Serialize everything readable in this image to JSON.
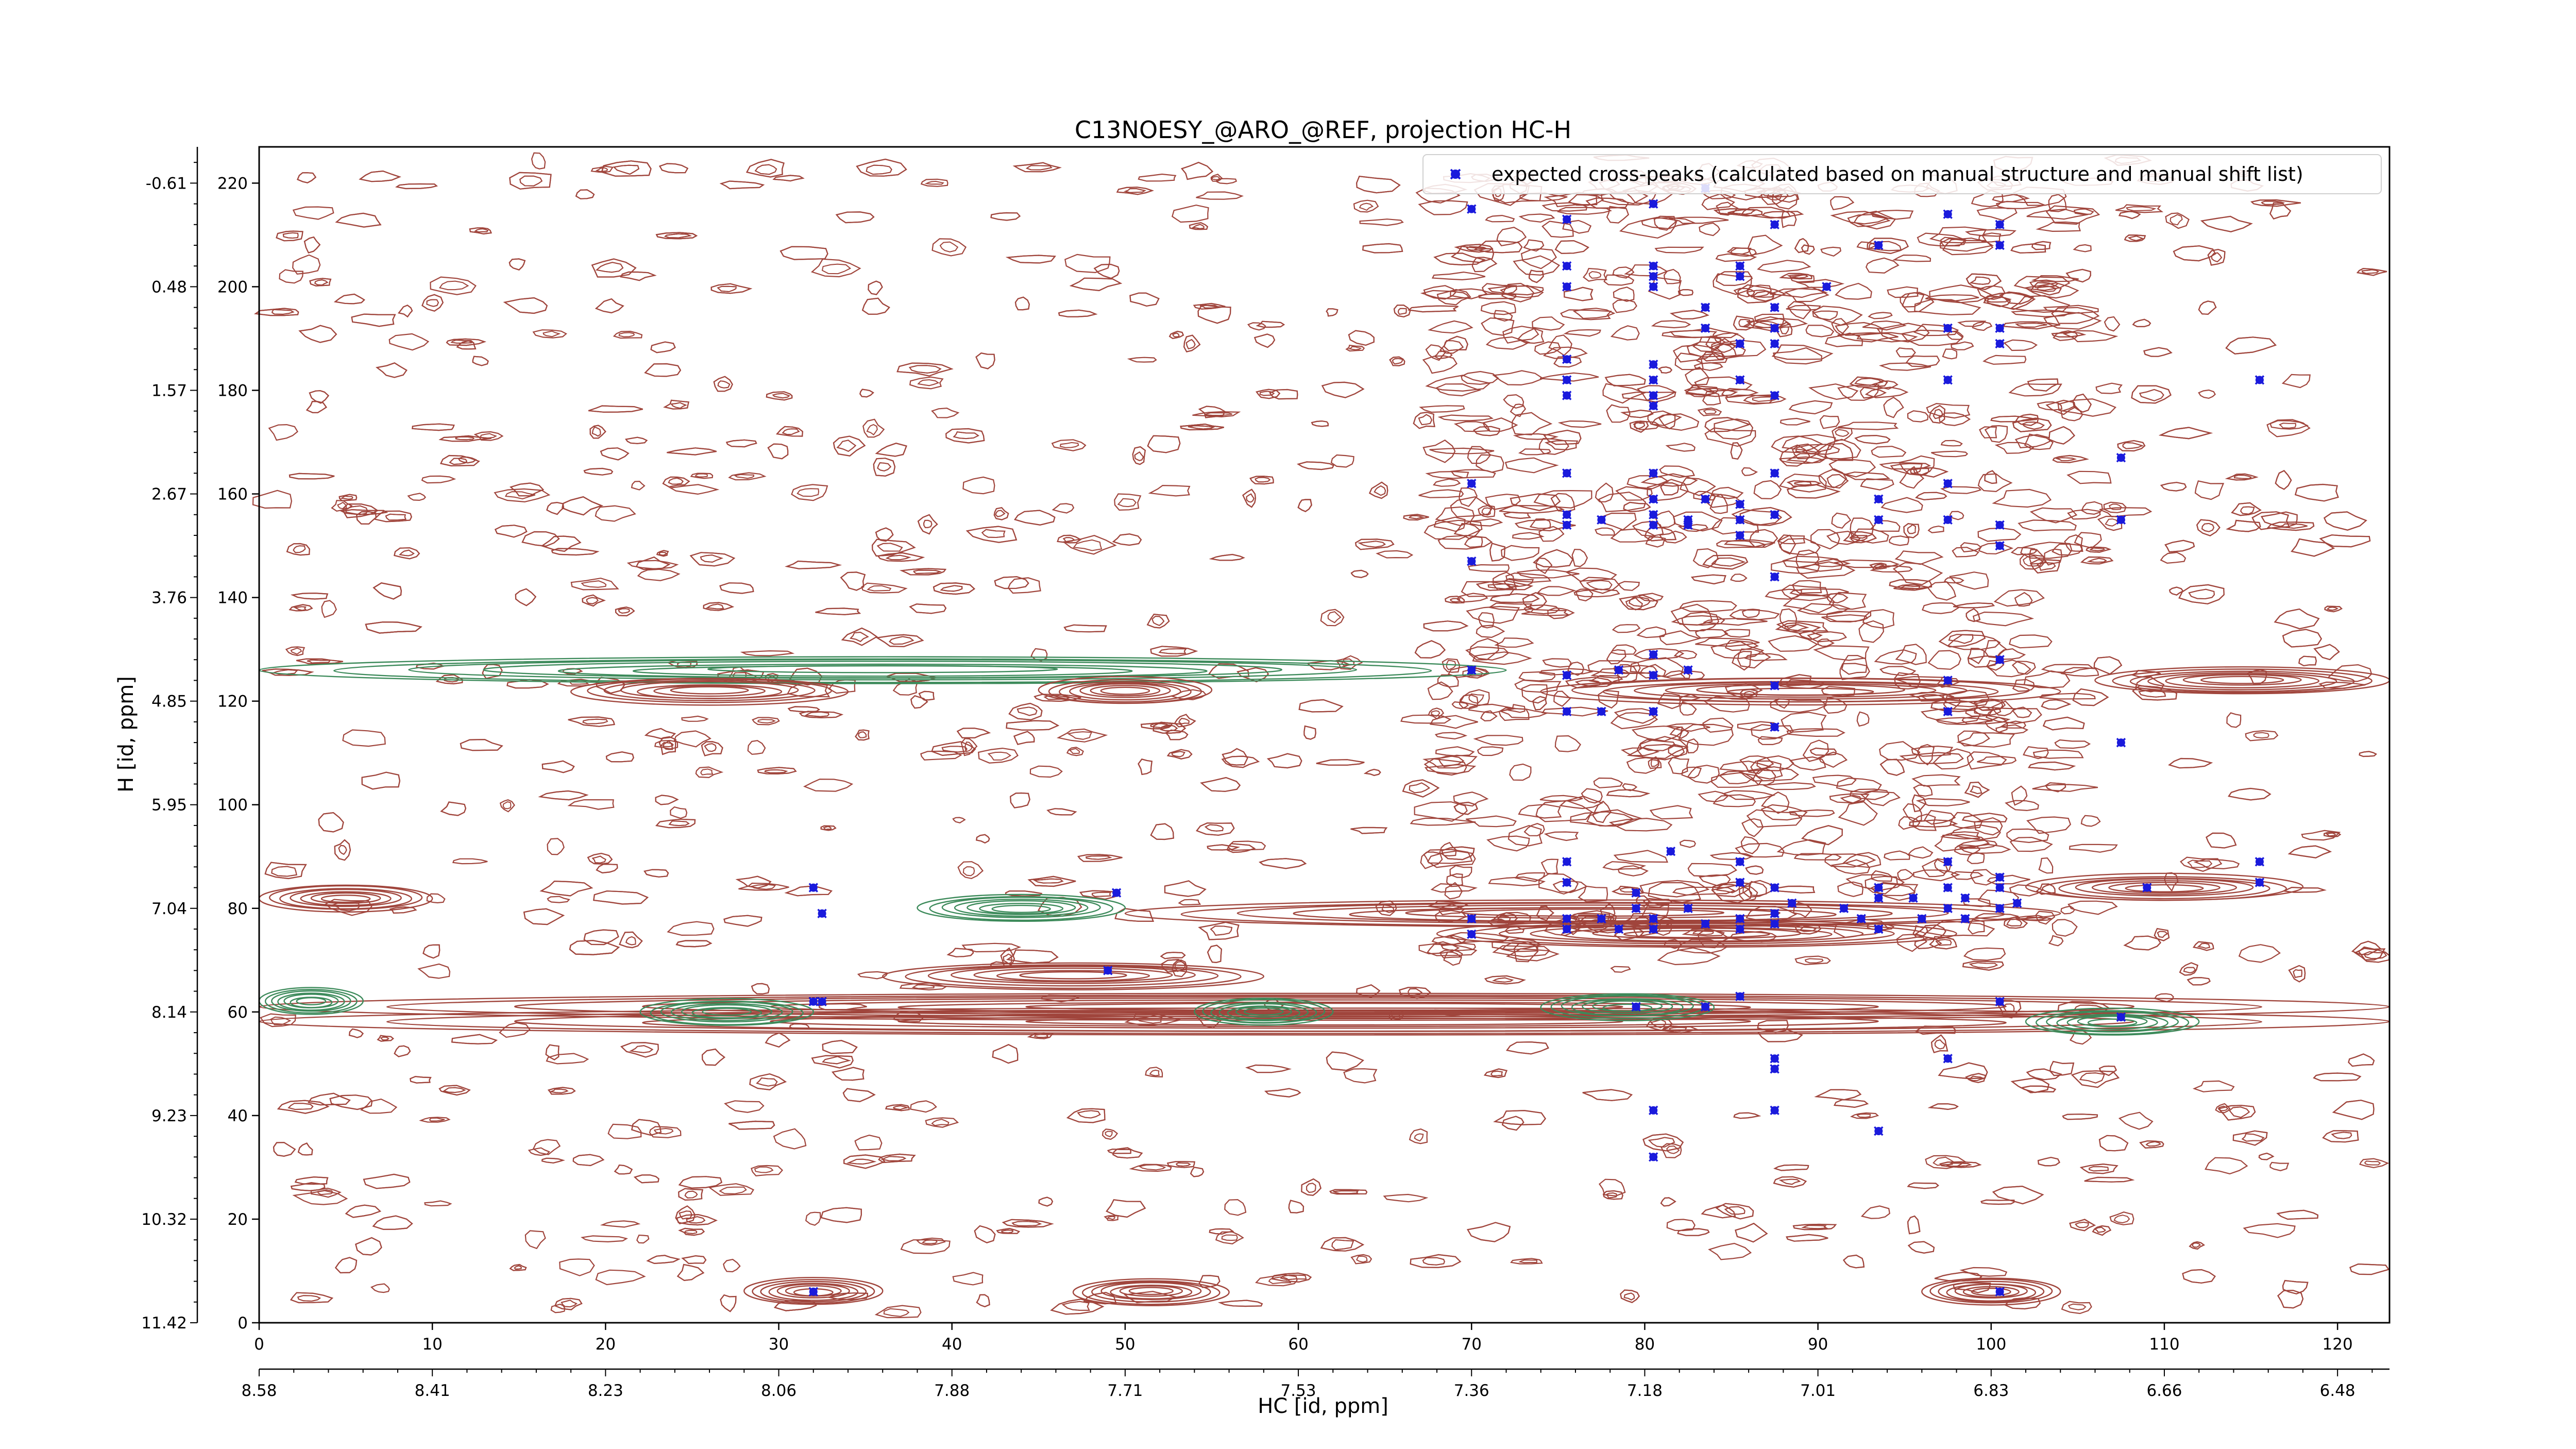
{
  "chart_data": {
    "type": "scatter",
    "title": "C13NOESY_@ARO_@REF, projection HC-H",
    "xlabel": "HC [id, ppm]",
    "ylabel": "H [id, ppm]",
    "xlim": [
      0,
      123
    ],
    "ylim": [
      0,
      227
    ],
    "x_ticks": [
      0,
      10,
      20,
      30,
      40,
      50,
      60,
      70,
      80,
      90,
      100,
      110,
      120
    ],
    "x_ticks_ppm": [
      {
        "x": 0,
        "label": "8.58"
      },
      {
        "x": 10,
        "label": "8.41"
      },
      {
        "x": 20,
        "label": "8.23"
      },
      {
        "x": 30,
        "label": "8.06"
      },
      {
        "x": 40,
        "label": "7.88"
      },
      {
        "x": 50,
        "label": "7.71"
      },
      {
        "x": 60,
        "label": "7.53"
      },
      {
        "x": 70,
        "label": "7.36"
      },
      {
        "x": 80,
        "label": "7.18"
      },
      {
        "x": 90,
        "label": "7.01"
      },
      {
        "x": 100,
        "label": "6.83"
      },
      {
        "x": 110,
        "label": "6.66"
      },
      {
        "x": 120,
        "label": "6.48"
      }
    ],
    "y_ticks": [
      0,
      20,
      40,
      60,
      80,
      100,
      120,
      140,
      160,
      180,
      200,
      220
    ],
    "y_ticks_ppm": [
      {
        "y": 0,
        "label": "11.42"
      },
      {
        "y": 20,
        "label": "10.32"
      },
      {
        "y": 40,
        "label": "9.23"
      },
      {
        "y": 60,
        "label": "8.14"
      },
      {
        "y": 80,
        "label": "7.04"
      },
      {
        "y": 100,
        "label": "5.95"
      },
      {
        "y": 120,
        "label": "4.85"
      },
      {
        "y": 140,
        "label": "3.76"
      },
      {
        "y": 160,
        "label": "2.67"
      },
      {
        "y": 180,
        "label": "1.57"
      },
      {
        "y": 200,
        "label": "0.48"
      },
      {
        "y": 220,
        "label": "-0.61"
      }
    ],
    "legend": {
      "placement": "top-right",
      "label": "expected cross-peaks (calculated based on manual structure and manual shift list)"
    },
    "grid": false,
    "contour_colors": {
      "positive": "#a0453c",
      "negative": "#3c8a5a"
    },
    "marker_color": "#1a1adc",
    "bands": [
      {
        "sign": "negative",
        "y": 126,
        "x0": 0,
        "x1": 72
      },
      {
        "sign": "positive",
        "y": 122,
        "x0": 18,
        "x1": 34
      },
      {
        "sign": "positive",
        "y": 122,
        "x0": 45,
        "x1": 55
      },
      {
        "sign": "positive",
        "y": 122,
        "x0": 74,
        "x1": 104
      },
      {
        "sign": "positive",
        "y": 124,
        "x0": 106,
        "x1": 123
      },
      {
        "sign": "positive",
        "y": 82,
        "x0": 0,
        "x1": 10
      },
      {
        "sign": "negative",
        "y": 80,
        "x0": 38,
        "x1": 50
      },
      {
        "sign": "positive",
        "y": 79,
        "x0": 50,
        "x1": 104
      },
      {
        "sign": "positive",
        "y": 75,
        "x0": 68,
        "x1": 98
      },
      {
        "sign": "positive",
        "y": 84,
        "x0": 102,
        "x1": 118
      },
      {
        "sign": "positive",
        "y": 67,
        "x0": 36,
        "x1": 58
      },
      {
        "sign": "positive",
        "y": 61,
        "x0": 0,
        "x1": 123
      },
      {
        "sign": "negative",
        "y": 62,
        "x0": 0,
        "x1": 6
      },
      {
        "sign": "positive",
        "y": 58,
        "x0": 0,
        "x1": 123
      },
      {
        "sign": "negative",
        "y": 60,
        "x0": 22,
        "x1": 32
      },
      {
        "sign": "negative",
        "y": 60,
        "x0": 54,
        "x1": 62
      },
      {
        "sign": "negative",
        "y": 61,
        "x0": 74,
        "x1": 84
      },
      {
        "sign": "negative",
        "y": 58,
        "x0": 102,
        "x1": 112
      },
      {
        "sign": "positive",
        "y": 6,
        "x0": 28,
        "x1": 36
      },
      {
        "sign": "positive",
        "y": 6,
        "x0": 47,
        "x1": 56
      },
      {
        "sign": "positive",
        "y": 6,
        "x0": 96,
        "x1": 104
      }
    ],
    "points": [
      [
        70,
        215
      ],
      [
        75.5,
        213
      ],
      [
        80.5,
        216
      ],
      [
        83.5,
        219
      ],
      [
        87.5,
        212
      ],
      [
        97.5,
        214
      ],
      [
        100.5,
        212
      ],
      [
        93.5,
        208
      ],
      [
        100.5,
        208
      ],
      [
        75.5,
        204
      ],
      [
        80.5,
        204
      ],
      [
        80.5,
        202
      ],
      [
        85.5,
        204
      ],
      [
        85.5,
        202
      ],
      [
        75.5,
        200
      ],
      [
        80.5,
        200
      ],
      [
        90.5,
        200
      ],
      [
        83.5,
        196
      ],
      [
        87.5,
        196
      ],
      [
        83.5,
        192
      ],
      [
        87.5,
        192
      ],
      [
        97.5,
        192
      ],
      [
        100.5,
        192
      ],
      [
        75.5,
        186
      ],
      [
        80.5,
        185
      ],
      [
        85.5,
        189
      ],
      [
        87.5,
        189
      ],
      [
        100.5,
        189
      ],
      [
        75.5,
        182
      ],
      [
        80.5,
        182
      ],
      [
        85.5,
        182
      ],
      [
        97.5,
        182
      ],
      [
        115.5,
        182
      ],
      [
        75.5,
        179
      ],
      [
        80.5,
        179
      ],
      [
        87.5,
        179
      ],
      [
        80.5,
        177
      ],
      [
        107.5,
        167
      ],
      [
        75.5,
        164
      ],
      [
        80.5,
        164
      ],
      [
        87.5,
        164
      ],
      [
        70,
        162
      ],
      [
        97.5,
        162
      ],
      [
        80.5,
        159
      ],
      [
        83.5,
        159
      ],
      [
        93.5,
        159
      ],
      [
        85.5,
        158
      ],
      [
        75.5,
        156
      ],
      [
        77.5,
        155
      ],
      [
        80.5,
        156
      ],
      [
        82.5,
        155
      ],
      [
        85.5,
        155
      ],
      [
        87.5,
        156
      ],
      [
        93.5,
        155
      ],
      [
        97.5,
        155
      ],
      [
        100.5,
        154
      ],
      [
        107.5,
        155
      ],
      [
        75.5,
        154
      ],
      [
        80.5,
        154
      ],
      [
        85.5,
        152
      ],
      [
        82.5,
        154
      ],
      [
        100.5,
        150
      ],
      [
        70,
        147
      ],
      [
        87.5,
        144
      ],
      [
        80.5,
        129
      ],
      [
        70,
        126
      ],
      [
        75.5,
        125
      ],
      [
        78.5,
        126
      ],
      [
        80.5,
        125
      ],
      [
        82.5,
        126
      ],
      [
        87.5,
        123
      ],
      [
        97.5,
        124
      ],
      [
        100.5,
        128
      ],
      [
        75.5,
        118
      ],
      [
        77.5,
        118
      ],
      [
        80.5,
        118
      ],
      [
        97.5,
        118
      ],
      [
        87.5,
        115
      ],
      [
        107.5,
        112
      ],
      [
        32,
        84
      ],
      [
        49.5,
        83
      ],
      [
        32.5,
        79
      ],
      [
        75.5,
        89
      ],
      [
        81.5,
        91
      ],
      [
        85.5,
        89
      ],
      [
        97.5,
        89
      ],
      [
        115.5,
        89
      ],
      [
        75.5,
        85
      ],
      [
        79.5,
        83
      ],
      [
        85.5,
        85
      ],
      [
        87.5,
        84
      ],
      [
        93.5,
        84
      ],
      [
        97.5,
        84
      ],
      [
        100.5,
        86
      ],
      [
        100.5,
        84
      ],
      [
        115.5,
        85
      ],
      [
        109,
        84
      ],
      [
        70,
        78
      ],
      [
        75.5,
        78
      ],
      [
        77.5,
        78
      ],
      [
        79.5,
        80
      ],
      [
        80.5,
        78
      ],
      [
        82.5,
        80
      ],
      [
        83.5,
        77
      ],
      [
        85.5,
        78
      ],
      [
        87.5,
        79
      ],
      [
        88.5,
        81
      ],
      [
        91.5,
        80
      ],
      [
        92.5,
        78
      ],
      [
        93.5,
        82
      ],
      [
        95.5,
        82
      ],
      [
        97.5,
        80
      ],
      [
        98.5,
        82
      ],
      [
        100.5,
        80
      ],
      [
        101.5,
        81
      ],
      [
        70,
        75
      ],
      [
        75.5,
        76
      ],
      [
        78.5,
        76
      ],
      [
        80.5,
        76
      ],
      [
        85.5,
        76
      ],
      [
        87.5,
        77
      ],
      [
        93.5,
        76
      ],
      [
        96,
        78
      ],
      [
        98.5,
        78
      ],
      [
        49,
        68
      ],
      [
        32,
        62
      ],
      [
        32.5,
        62
      ],
      [
        79.5,
        61
      ],
      [
        85.5,
        63
      ],
      [
        83.5,
        61
      ],
      [
        100.5,
        62
      ],
      [
        107.5,
        59
      ],
      [
        97.5,
        51
      ],
      [
        87.5,
        51
      ],
      [
        87.5,
        49
      ],
      [
        87.5,
        41
      ],
      [
        80.5,
        41
      ],
      [
        93.5,
        37
      ],
      [
        80.5,
        32
      ],
      [
        32,
        6
      ],
      [
        100.5,
        6
      ]
    ]
  }
}
